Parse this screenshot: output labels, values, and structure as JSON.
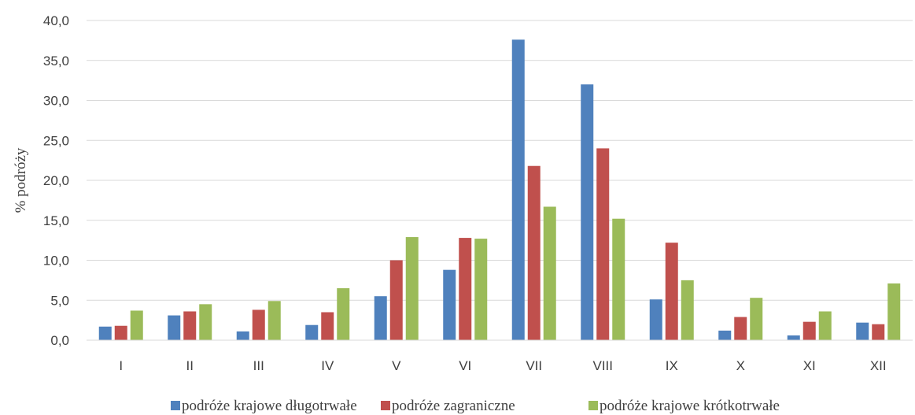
{
  "chart_data": {
    "type": "bar",
    "title": "",
    "xlabel": "",
    "ylabel": "% podróży",
    "ylim": [
      0,
      40
    ],
    "yticks": [
      "0,0",
      "5,0",
      "10,0",
      "15,0",
      "20,0",
      "25,0",
      "30,0",
      "35,0",
      "40,0"
    ],
    "grid": true,
    "legend_position": "bottom",
    "categories": [
      "I",
      "II",
      "III",
      "IV",
      "V",
      "VI",
      "VII",
      "VIII",
      "IX",
      "X",
      "XI",
      "XII"
    ],
    "series": [
      {
        "name": "podróże krajowe długotrwałe",
        "color": "#4F81BD",
        "values": [
          1.7,
          3.1,
          1.1,
          1.9,
          5.5,
          8.8,
          37.6,
          32.0,
          5.1,
          1.2,
          0.6,
          2.2
        ]
      },
      {
        "name": "podróże zagraniczne",
        "color": "#C0504D",
        "values": [
          1.8,
          3.6,
          3.8,
          3.5,
          10.0,
          12.8,
          21.8,
          24.0,
          12.2,
          2.9,
          2.3,
          2.0
        ]
      },
      {
        "name": "podróże krajowe krótkotrwałe",
        "color": "#9BBB59",
        "values": [
          3.7,
          4.5,
          4.9,
          6.5,
          12.9,
          12.7,
          16.7,
          15.2,
          7.5,
          5.3,
          3.6,
          7.1
        ]
      }
    ]
  }
}
